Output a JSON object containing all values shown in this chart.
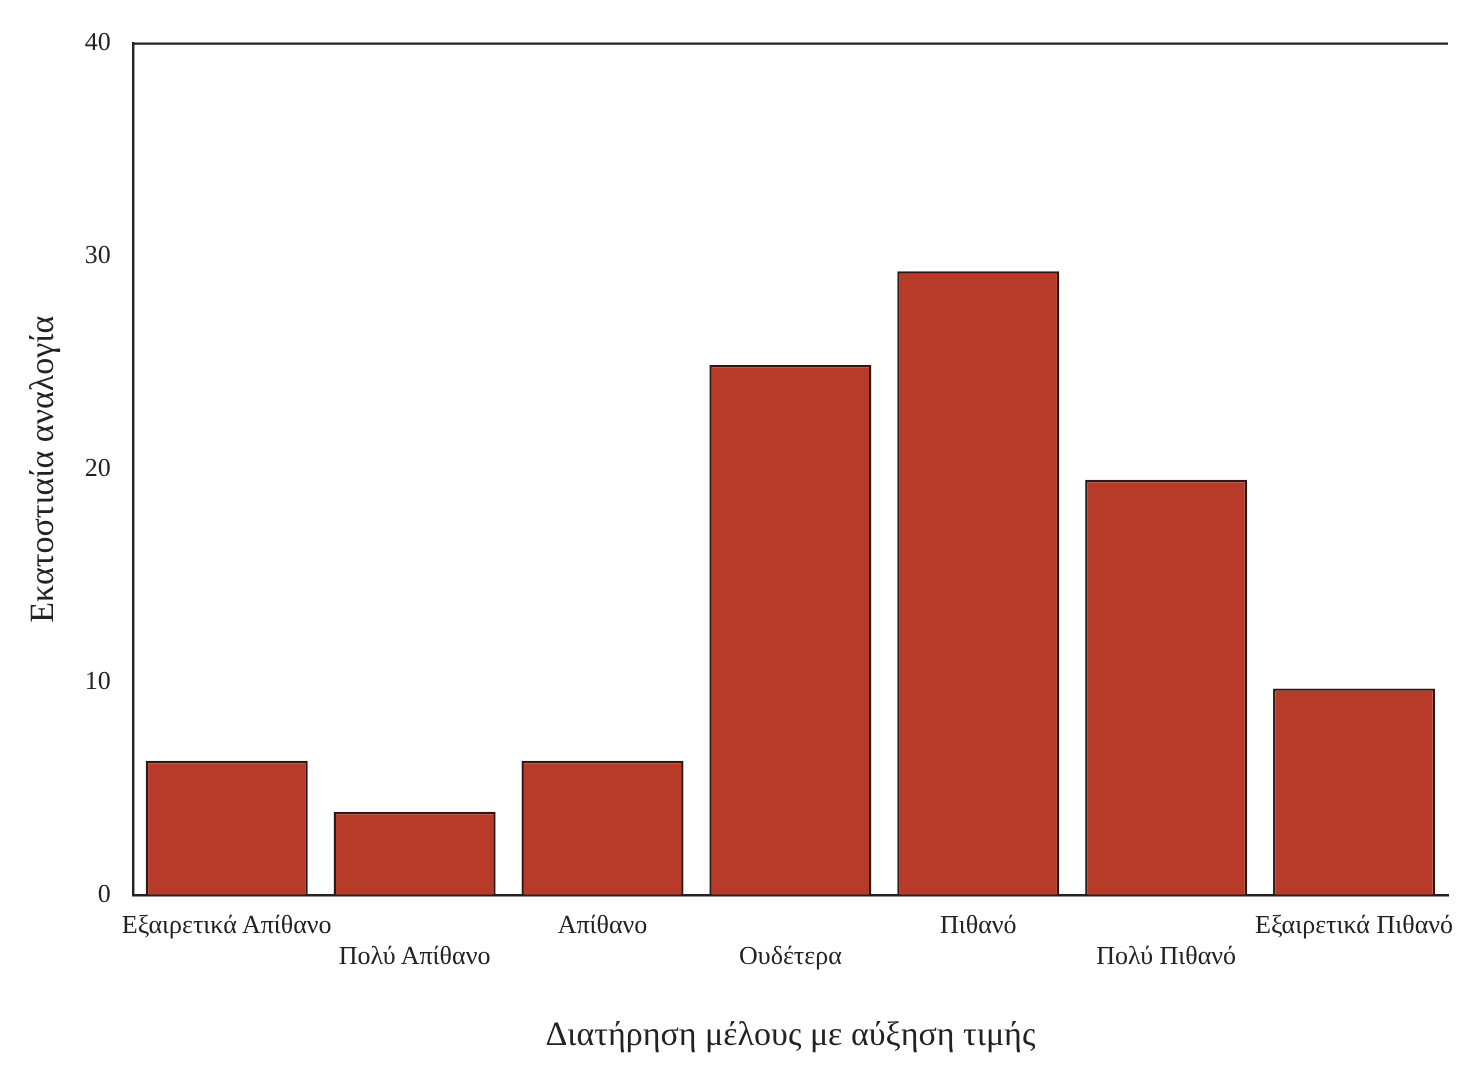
{
  "chart_data": {
    "type": "bar",
    "xlabel": "Διατήρηση μέλους με αύξηση τιμής",
    "ylabel": "Εκατοστιαία αναλογία",
    "categories": [
      "Εξαιρετικά Απίθανο",
      "Πολύ Απίθανο",
      "Απίθανο",
      "Ουδέτερα",
      "Πιθανό",
      "Πολύ Πιθανό",
      "Εξαιρετικά Πιθανό"
    ],
    "values": [
      6.3,
      3.9,
      6.3,
      24.9,
      29.3,
      19.5,
      9.7
    ],
    "color": "#b83a28",
    "ylim": [
      0,
      40
    ],
    "yticks": [
      0,
      10,
      20,
      30,
      40
    ],
    "grid": false,
    "legend": false
  }
}
